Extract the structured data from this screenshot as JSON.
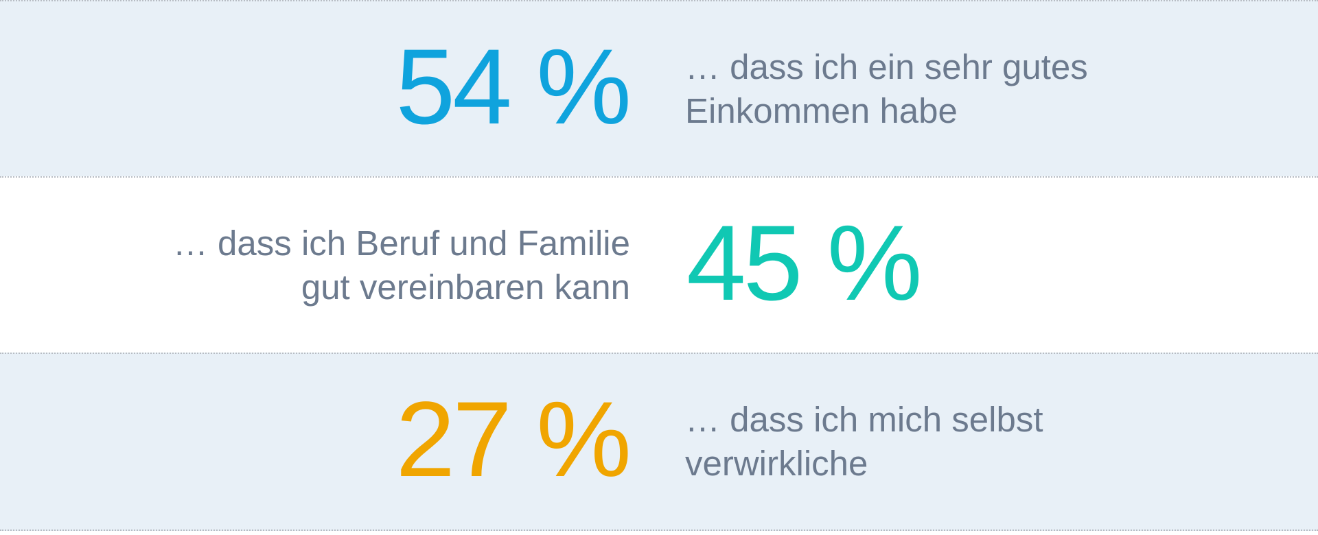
{
  "rows": [
    {
      "percent": "54 %",
      "color": "#0fa3dd",
      "text_line1": "… dass ich ein sehr gutes",
      "text_line2": "Einkommen habe"
    },
    {
      "percent": "45 %",
      "color": "#10c8b3",
      "text_line1": "… dass ich Beruf und Familie",
      "text_line2": "gut vereinbaren kann"
    },
    {
      "percent": "27 %",
      "color": "#f0a500",
      "text_line1": "… dass ich mich selbst",
      "text_line2": "verwirkliche"
    }
  ]
}
